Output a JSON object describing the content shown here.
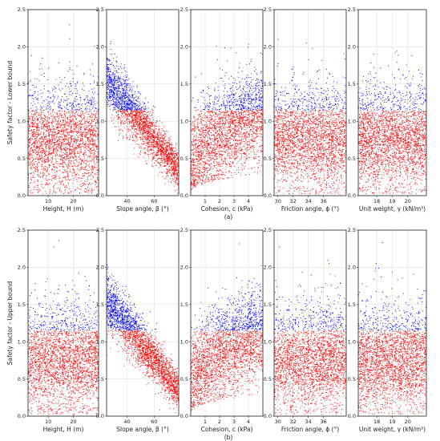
{
  "chart_data": {
    "type": "scatter",
    "threshold": 1.15,
    "colors": {
      "above": "#0000ff",
      "below": "#ff0000"
    },
    "grid": true,
    "rows": [
      {
        "tag": "(a)",
        "ylabel": "Safety factor - Lower bound",
        "ylim": [
          0,
          2.5
        ],
        "yticks": [
          "0.0",
          "0.5",
          "1.0",
          "1.5",
          "2.0",
          "2.5"
        ]
      },
      {
        "tag": "(b)",
        "ylabel": "Safety factor - Upper bound",
        "ylim": [
          0,
          2.5
        ],
        "yticks": [
          "0.0",
          "0.5",
          "1.0",
          "1.5",
          "2.0",
          "2.5"
        ]
      }
    ],
    "panels": [
      {
        "xlabel": "Height, H (m)",
        "xlim": [
          2,
          30
        ],
        "xticks": [
          10,
          20
        ],
        "xtick_labels": [
          "10",
          "20"
        ],
        "relation": "uniform"
      },
      {
        "xlabel": "Slope angle, β (°)",
        "xlim": [
          25,
          78
        ],
        "xticks": [
          40,
          60
        ],
        "xtick_labels": [
          "40",
          "60"
        ],
        "relation": "decreasing"
      },
      {
        "xlabel": "Cohesion, c (kPa)",
        "xlim": [
          0,
          5
        ],
        "xticks": [
          1,
          2,
          3,
          4
        ],
        "xtick_labels": [
          "1",
          "2",
          "3",
          "4"
        ],
        "relation": "increasing"
      },
      {
        "xlabel": "Friction angle, ϕ (°)",
        "xlim": [
          29.5,
          39
        ],
        "xticks": [
          30,
          32,
          34,
          36
        ],
        "xtick_labels": [
          "30",
          "32",
          "34",
          "36"
        ],
        "relation": "uniform"
      },
      {
        "xlabel": "Unit weight, γ (kN/m³)",
        "xlim": [
          16.8,
          21.2
        ],
        "xticks": [
          18,
          19,
          20
        ],
        "xtick_labels": [
          "18",
          "19",
          "20"
        ],
        "relation": "uniform"
      }
    ]
  }
}
